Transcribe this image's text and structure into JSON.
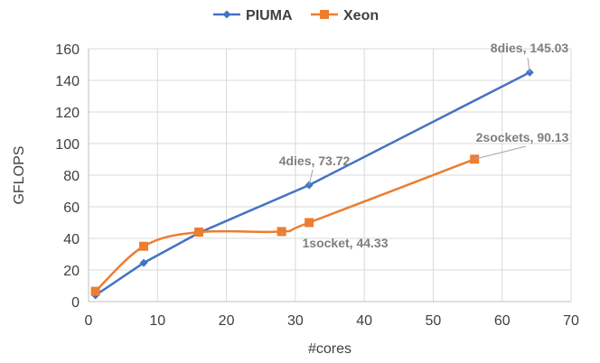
{
  "chart_data": {
    "type": "line",
    "xlabel": "#cores",
    "ylabel": "GFLOPS",
    "xlim": [
      0,
      70
    ],
    "ylim": [
      0,
      160
    ],
    "xticks": [
      "0",
      "10",
      "20",
      "30",
      "40",
      "50",
      "60",
      "70"
    ],
    "yticks": [
      "0",
      "20",
      "40",
      "60",
      "80",
      "100",
      "120",
      "140",
      "160"
    ],
    "grid": true,
    "legend_position": "top-center",
    "series": [
      {
        "name": "PIUMA",
        "color": "#4472c4",
        "marker": "diamond",
        "smooth": false,
        "x": [
          1,
          8,
          16,
          32,
          64
        ],
        "y": [
          4,
          24.5,
          43.5,
          73.72,
          145.03
        ]
      },
      {
        "name": "Xeon",
        "color": "#ed7d31",
        "marker": "square",
        "smooth": true,
        "x": [
          1,
          8,
          16,
          28,
          32,
          56
        ],
        "y": [
          6.5,
          35,
          44,
          44.33,
          50,
          90.13
        ]
      }
    ],
    "annotations": [
      {
        "text": "8dies, 145.03",
        "series": 0,
        "point": 4
      },
      {
        "text": "4dies, 73.72",
        "series": 0,
        "point": 3
      },
      {
        "text": "2sockets, 90.13",
        "series": 1,
        "point": 5
      },
      {
        "text": "1socket, 44.33",
        "series": 1,
        "point": 3
      }
    ]
  }
}
